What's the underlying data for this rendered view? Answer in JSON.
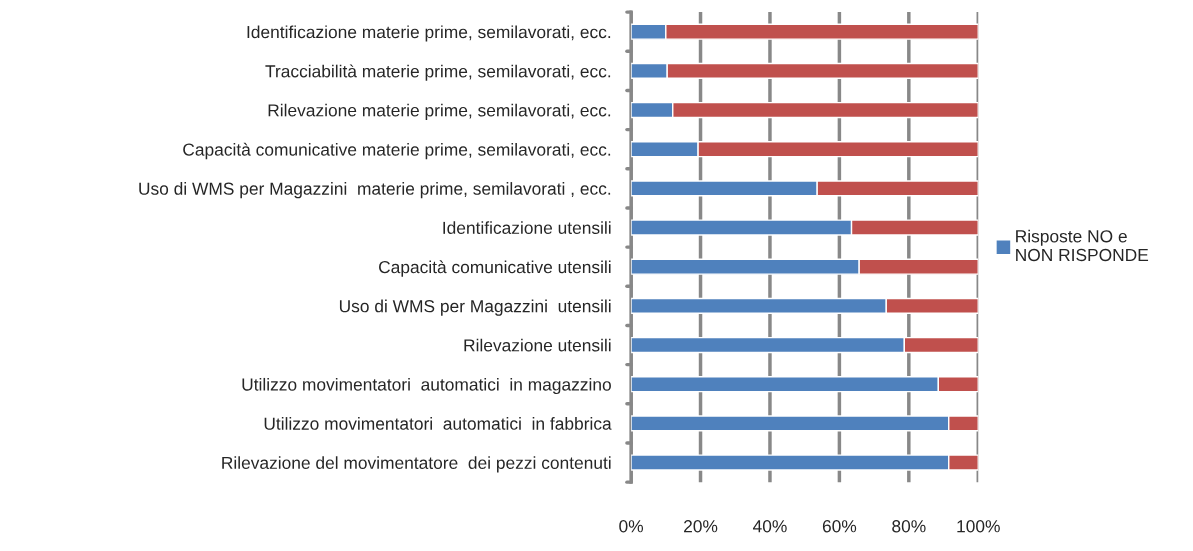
{
  "chart_data": {
    "type": "bar",
    "orientation": "horizontal",
    "stacked": true,
    "categories": [
      "Identificazione materie prime, semilavorati, ecc.",
      "Tracciabilità materie prime, semilavorati, ecc.",
      "Rilevazione materie prime, semilavorati, ecc.",
      "Capacità comunicative materie prime, semilavorati, ecc.",
      "Uso di WMS per Magazzini  materie prime, semilavorati , ecc.",
      "Identificazione utensili",
      "Capacità comunicative utensili",
      "Uso di WMS per Magazzini  utensili",
      "Rilevazione utensili",
      "Utilizzo movimentatori  automatici  in magazzino",
      "Utilizzo movimentatori  automatici  in fabbrica",
      "Rilevazione del movimentatore  dei pezzi contenuti"
    ],
    "series": [
      {
        "name": "Risposte NO e NON RISPONDE",
        "color": "#4f81bd",
        "values": [
          10,
          10.4,
          12,
          19.3,
          53.6,
          63.5,
          65.7,
          73.5,
          78.7,
          88.5,
          91.5,
          91.5
        ]
      },
      {
        "color": "#c0504d",
        "values": [
          90,
          89.6,
          88,
          80.7,
          46.4,
          36.5,
          34.3,
          26.5,
          21.3,
          11.5,
          8.5,
          8.5
        ]
      }
    ],
    "xlim": [
      0,
      100
    ],
    "xticks": [
      {
        "value": 0,
        "label": "0%"
      },
      {
        "value": 20,
        "label": "20%"
      },
      {
        "value": 40,
        "label": "40%"
      },
      {
        "value": 60,
        "label": "60%"
      },
      {
        "value": 80,
        "label": "80%"
      },
      {
        "value": 100,
        "label": "100%"
      }
    ],
    "grid": "x",
    "legend": "right"
  }
}
